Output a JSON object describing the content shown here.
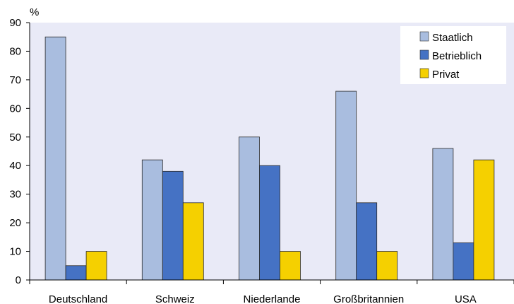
{
  "chart_data": {
    "type": "bar",
    "title": "",
    "ylabel": "%",
    "xlabel": "",
    "ylim": [
      0,
      90
    ],
    "yticks": [
      0,
      10,
      20,
      30,
      40,
      50,
      60,
      70,
      80,
      90
    ],
    "grid": false,
    "legend_position": "top-right",
    "categories": [
      "Deutschland",
      "Schweiz",
      "Niederlande",
      "Großbritannien",
      "USA"
    ],
    "series": [
      {
        "name": "Staatlich",
        "color": "#a9bddf",
        "values": [
          85,
          42,
          50,
          66,
          46
        ]
      },
      {
        "name": "Betrieblich",
        "color": "#4572c4",
        "values": [
          5,
          38,
          40,
          27,
          13
        ]
      },
      {
        "name": "Privat",
        "color": "#f5d000",
        "values": [
          10,
          27,
          10,
          10,
          42
        ]
      }
    ]
  },
  "colors": {
    "plot_background": "#e9eaf7",
    "legend_background": "#ffffff",
    "axis": "#000000"
  }
}
